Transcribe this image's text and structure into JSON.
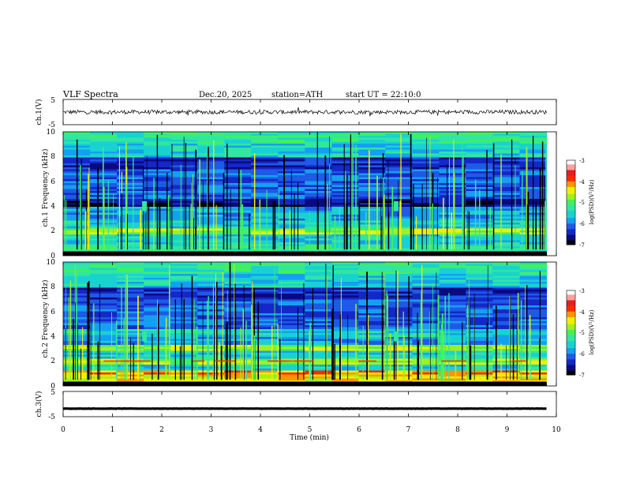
{
  "header": {
    "title": "VLF Spectra",
    "date": "Dec.20, 2025",
    "station": "station=ATH",
    "start": "start UT = 22:10:0"
  },
  "colors": {
    "axis": "#000000",
    "waveform": "#000000",
    "colormap": [
      "#000000",
      "#0a0a80",
      "#1428c8",
      "#1e5ae6",
      "#14a0f0",
      "#18d2d2",
      "#30e6a0",
      "#40f060",
      "#a0f020",
      "#f0f000",
      "#ff9600",
      "#ff2800",
      "#e61e1e",
      "#ffa0a0",
      "#ffffff"
    ]
  },
  "chart_data": [
    {
      "type": "line",
      "name": "ch1-waveform",
      "title": "VLF Spectra",
      "ylabel": "ch.1(V)",
      "ylim": [
        -5,
        5
      ],
      "yticks": [
        "5",
        "-5"
      ],
      "xlim": [
        0,
        10
      ],
      "series": [
        {
          "name": "ch.1",
          "mean": 0,
          "amplitude": 0.8
        }
      ]
    },
    {
      "type": "heatmap",
      "name": "ch1-spectrogram",
      "ylabel": "ch.1 Frequency (kHz)",
      "ylim": [
        0,
        10
      ],
      "yticks": [
        "0",
        "2",
        "4",
        "6",
        "8",
        "10"
      ],
      "xlim": [
        0,
        10
      ],
      "data_end_min": 9.8,
      "colorbar": {
        "label": "log(PSD)(V²/Hz)",
        "range": [
          -7,
          -3
        ],
        "ticks": [
          "-3",
          "-4",
          "-5",
          "-6",
          "-7"
        ]
      }
    },
    {
      "type": "heatmap",
      "name": "ch2-spectrogram",
      "ylabel": "ch.2 Frequency (kHz)",
      "ylim": [
        0,
        10
      ],
      "yticks": [
        "0",
        "2",
        "4",
        "6",
        "8",
        "10"
      ],
      "xlim": [
        0,
        10
      ],
      "data_end_min": 9.8,
      "colorbar": {
        "label": "log(PSD)(V²/Hz)",
        "range": [
          -7,
          -3
        ],
        "ticks": [
          "-3",
          "-4",
          "-5",
          "-6",
          "-7"
        ]
      }
    },
    {
      "type": "line",
      "name": "ch3-waveform",
      "ylabel": "ch.3(V)",
      "ylim": [
        -5,
        5
      ],
      "yticks": [
        "5",
        "-5"
      ],
      "xlim": [
        0,
        10
      ],
      "xlabel": "Time (min)",
      "xticks": [
        "0",
        "1",
        "2",
        "3",
        "4",
        "5",
        "6",
        "7",
        "8",
        "9",
        "10"
      ],
      "series": [
        {
          "name": "ch.3",
          "mean": -1.8,
          "amplitude": 0.05
        }
      ]
    }
  ]
}
